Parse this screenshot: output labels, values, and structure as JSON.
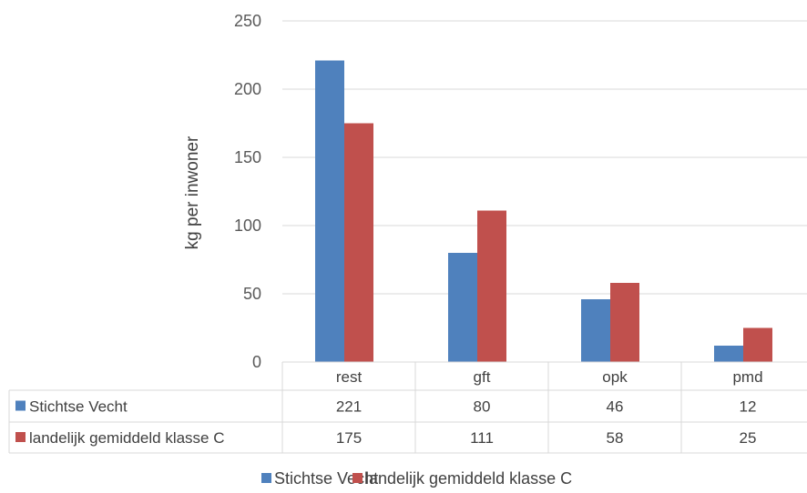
{
  "chart_data": {
    "type": "bar",
    "categories": [
      "rest",
      "gft",
      "opk",
      "pmd"
    ],
    "series": [
      {
        "name": "Stichtse Vecht",
        "values": [
          221,
          80,
          46,
          12
        ],
        "color": "#4F81BD"
      },
      {
        "name": "landelijk gemiddeld klasse C",
        "values": [
          175,
          111,
          58,
          25
        ],
        "color": "#C0504D"
      }
    ],
    "ylabel": "kg per inwoner",
    "yticks": [
      0,
      50,
      100,
      150,
      200,
      250
    ],
    "ylim": [
      0,
      250
    ],
    "grid": true,
    "data_table": true,
    "legend_position": "bottom"
  }
}
